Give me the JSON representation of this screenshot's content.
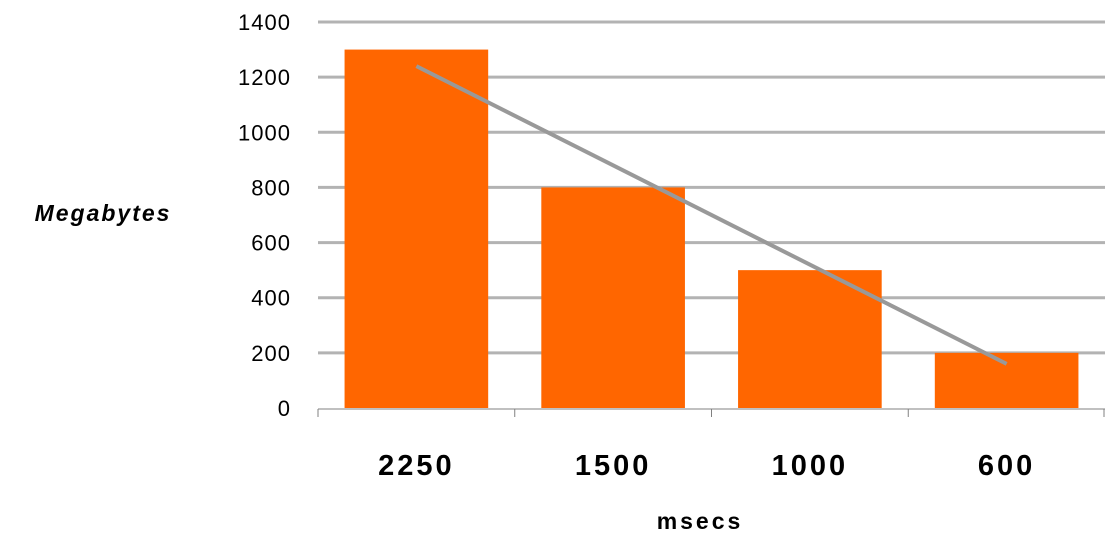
{
  "chart_data": {
    "type": "bar",
    "categories": [
      "2250",
      "1500",
      "1000",
      "600"
    ],
    "values": [
      1300,
      800,
      500,
      200
    ],
    "trendline": {
      "type": "linear",
      "color": "#999999"
    },
    "title": "",
    "xlabel": "msecs",
    "ylabel": "Megabytes",
    "ylim": [
      0,
      1400
    ],
    "yticks": [
      0,
      200,
      400,
      600,
      800,
      1000,
      1200,
      1400
    ],
    "grid": true,
    "colors": {
      "bar": "#ff6600",
      "grid": "#b3b3b3",
      "axis": "#808080"
    }
  }
}
